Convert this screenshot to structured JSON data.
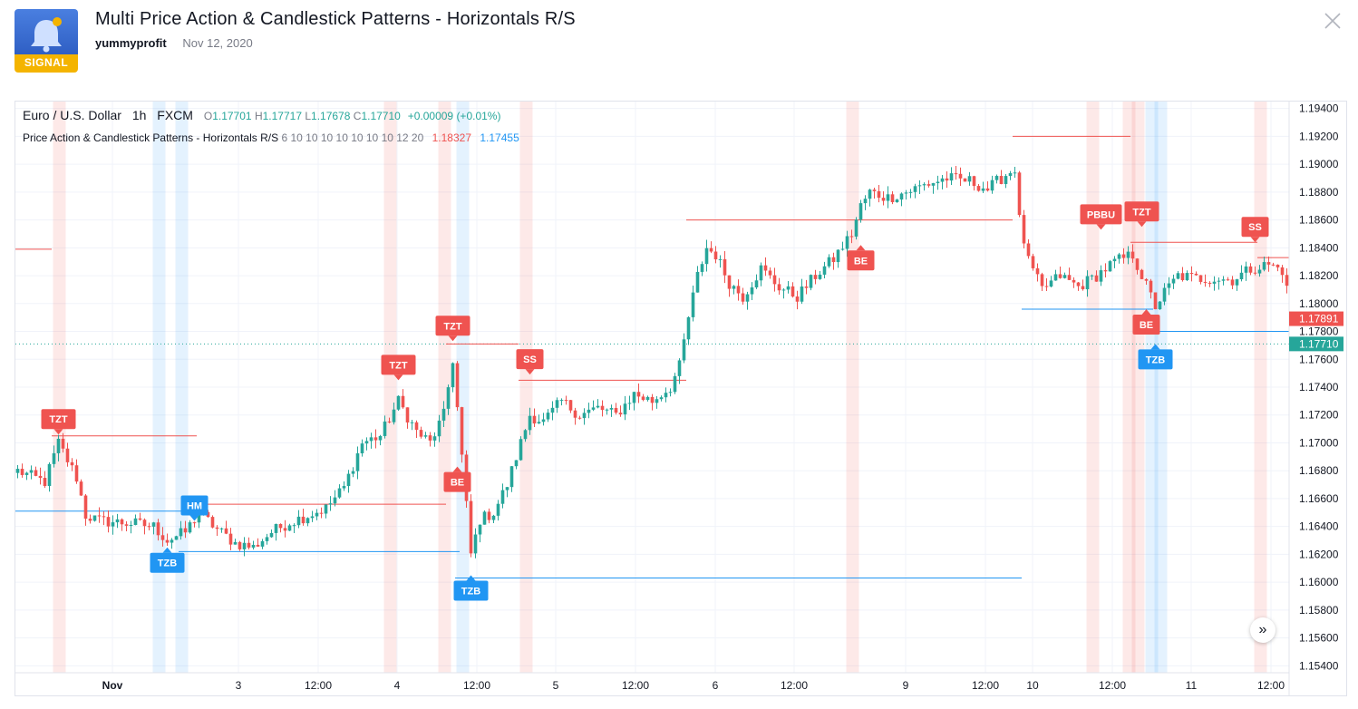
{
  "header": {
    "title": "Multi Price Action & Candlestick Patterns - Horizontals R/S",
    "author": "yummyprofit",
    "date": "Nov 12, 2020",
    "logo_label": "SIGNAL",
    "logo_icon": "bell-icon",
    "close_icon": "close-icon"
  },
  "legend": {
    "symbol": "Euro / U.S. Dollar",
    "interval": "1h",
    "exchange": "FXCM",
    "open_label": "O",
    "open": "1.17701",
    "high_label": "H",
    "high": "1.17717",
    "low_label": "L",
    "low": "1.17678",
    "close_label": "C",
    "close": "1.17710",
    "change": "+0.00009 (+0.01%)",
    "indicator_name": "Price Action & Candlestick Patterns - Horizontals R/S",
    "indicator_args": "6 10 10 10 10 10 10 10 12 20",
    "indicator_val1": "1.18327",
    "indicator_val2": "1.17455"
  },
  "colors": {
    "up": "#26a69a",
    "down": "#ef5350",
    "support": "#2196f3",
    "resistance": "#ef5350"
  },
  "chart_data": {
    "type": "candlestick",
    "y_ticks": [
      "1.19400",
      "1.19200",
      "1.19000",
      "1.18800",
      "1.18600",
      "1.18400",
      "1.18200",
      "1.18000",
      "1.17800",
      "1.17600",
      "1.17400",
      "1.17200",
      "1.17000",
      "1.16800",
      "1.16600",
      "1.16400",
      "1.16200",
      "1.16000",
      "1.15800",
      "1.15600",
      "1.15400"
    ],
    "x_ticks": [
      "Nov",
      "3",
      "12:00",
      "4",
      "12:00",
      "5",
      "12:00",
      "6",
      "12:00",
      "9",
      "12:00",
      "10",
      "12:00",
      "11",
      "12:00"
    ],
    "ylim": [
      1.1535,
      1.1945
    ],
    "price_labels": [
      {
        "value": 1.17891,
        "text": "1.17891",
        "kind": "resistance"
      },
      {
        "value": 1.1771,
        "text": "1.17710",
        "kind": "last"
      }
    ],
    "pattern_labels": [
      {
        "text": "TZT",
        "kind": "bear",
        "bar": 9,
        "price": 1.1706
      },
      {
        "text": "TZT",
        "kind": "bear",
        "bar": 84,
        "price": 1.1745
      },
      {
        "text": "TZT",
        "kind": "bear",
        "bar": 96,
        "price": 1.1773
      },
      {
        "text": "SS",
        "kind": "bear",
        "bar": 113,
        "price": 1.1749
      },
      {
        "text": "BE",
        "kind": "bear",
        "bar": 97,
        "price": 1.1683,
        "below": true
      },
      {
        "text": "BE",
        "kind": "bear",
        "bar": 186,
        "price": 1.1842,
        "below": true
      },
      {
        "text": "PBBU",
        "kind": "bear",
        "bar": 239,
        "price": 1.1853
      },
      {
        "text": "TZT",
        "kind": "bear",
        "bar": 248,
        "price": 1.1855
      },
      {
        "text": "SS",
        "kind": "bear",
        "bar": 273,
        "price": 1.1844
      },
      {
        "text": "BE",
        "kind": "bear",
        "bar": 249,
        "price": 1.1796,
        "below": true
      },
      {
        "text": "HM",
        "kind": "bull",
        "bar": 39,
        "price": 1.1644,
        "above": true
      },
      {
        "text": "TZB",
        "kind": "bull",
        "bar": 33,
        "price": 1.1625
      },
      {
        "text": "TZB",
        "kind": "bull",
        "bar": 100,
        "price": 1.1605
      },
      {
        "text": "TZB",
        "kind": "bull",
        "bar": 251,
        "price": 1.1771
      }
    ],
    "horizontals": [
      {
        "kind": "resistance",
        "from": 0,
        "to": 7,
        "price": 1.1839
      },
      {
        "kind": "resistance",
        "from": 8,
        "to": 39,
        "price": 1.1705
      },
      {
        "kind": "support",
        "from": 0,
        "to": 38,
        "price": 1.1651
      },
      {
        "kind": "resistance",
        "from": 40,
        "to": 94,
        "price": 1.1656
      },
      {
        "kind": "support",
        "from": 36,
        "to": 97,
        "price": 1.1622
      },
      {
        "kind": "resistance",
        "from": 95,
        "to": 110,
        "price": 1.1771
      },
      {
        "kind": "support",
        "from": 97,
        "to": 221,
        "price": 1.1603
      },
      {
        "kind": "resistance",
        "from": 111,
        "to": 147,
        "price": 1.1745
      },
      {
        "kind": "resistance",
        "from": 148,
        "to": 219,
        "price": 1.186
      },
      {
        "kind": "resistance",
        "from": 220,
        "to": 245,
        "price": 1.192
      },
      {
        "kind": "support",
        "from": 222,
        "to": 250,
        "price": 1.1796
      },
      {
        "kind": "resistance",
        "from": 246,
        "to": 273,
        "price": 1.1844
      },
      {
        "kind": "support",
        "from": 250,
        "to": 280,
        "price": 1.178
      },
      {
        "kind": "resistance",
        "from": 274,
        "to": 280,
        "price": 1.1833
      }
    ],
    "highlight_columns": [
      {
        "kind": "bear",
        "bar": 9
      },
      {
        "kind": "bull",
        "bar": 31
      },
      {
        "kind": "bull",
        "bar": 36
      },
      {
        "kind": "bear",
        "bar": 82
      },
      {
        "kind": "bear",
        "bar": 94
      },
      {
        "kind": "bull",
        "bar": 98
      },
      {
        "kind": "bear",
        "bar": 112
      },
      {
        "kind": "bear",
        "bar": 184
      },
      {
        "kind": "bear",
        "bar": 237
      },
      {
        "kind": "bear",
        "bar": 245
      },
      {
        "kind": "bear",
        "bar": 247
      },
      {
        "kind": "bull",
        "bar": 250
      },
      {
        "kind": "bull",
        "bar": 252
      },
      {
        "kind": "bear",
        "bar": 274
      }
    ],
    "anchors": [
      [
        0,
        1.168
      ],
      [
        6,
        1.1672
      ],
      [
        9,
        1.17
      ],
      [
        13,
        1.1675
      ],
      [
        15,
        1.1648
      ],
      [
        18,
        1.1644
      ],
      [
        26,
        1.1642
      ],
      [
        30,
        1.164
      ],
      [
        33,
        1.163
      ],
      [
        37,
        1.1636
      ],
      [
        40,
        1.165
      ],
      [
        44,
        1.1638
      ],
      [
        48,
        1.1628
      ],
      [
        52,
        1.1625
      ],
      [
        56,
        1.1636
      ],
      [
        60,
        1.1643
      ],
      [
        64,
        1.1648
      ],
      [
        68,
        1.1653
      ],
      [
        72,
        1.1668
      ],
      [
        76,
        1.17
      ],
      [
        80,
        1.1705
      ],
      [
        84,
        1.173
      ],
      [
        88,
        1.1708
      ],
      [
        91,
        1.17
      ],
      [
        94,
        1.172
      ],
      [
        96,
        1.176
      ],
      [
        98,
        1.169
      ],
      [
        100,
        1.162
      ],
      [
        102,
        1.1645
      ],
      [
        105,
        1.165
      ],
      [
        108,
        1.167
      ],
      [
        110,
        1.169
      ],
      [
        113,
        1.172
      ],
      [
        116,
        1.1715
      ],
      [
        120,
        1.173
      ],
      [
        124,
        1.172
      ],
      [
        128,
        1.1725
      ],
      [
        132,
        1.172
      ],
      [
        136,
        1.1735
      ],
      [
        140,
        1.173
      ],
      [
        144,
        1.174
      ],
      [
        146,
        1.1755
      ],
      [
        148,
        1.179
      ],
      [
        150,
        1.182
      ],
      [
        152,
        1.184
      ],
      [
        154,
        1.1835
      ],
      [
        157,
        1.1815
      ],
      [
        160,
        1.1805
      ],
      [
        164,
        1.1825
      ],
      [
        168,
        1.1812
      ],
      [
        172,
        1.1805
      ],
      [
        176,
        1.182
      ],
      [
        180,
        1.1832
      ],
      [
        184,
        1.185
      ],
      [
        186,
        1.187
      ],
      [
        188,
        1.188
      ],
      [
        192,
        1.1876
      ],
      [
        196,
        1.188
      ],
      [
        200,
        1.1885
      ],
      [
        205,
        1.189
      ],
      [
        210,
        1.1888
      ],
      [
        214,
        1.1882
      ],
      [
        217,
        1.189
      ],
      [
        220,
        1.1897
      ],
      [
        221,
        1.186
      ],
      [
        223,
        1.183
      ],
      [
        226,
        1.181
      ],
      [
        230,
        1.182
      ],
      [
        234,
        1.1812
      ],
      [
        238,
        1.182
      ],
      [
        242,
        1.183
      ],
      [
        246,
        1.1835
      ],
      [
        248,
        1.182
      ],
      [
        251,
        1.1798
      ],
      [
        253,
        1.1808
      ],
      [
        256,
        1.182
      ],
      [
        260,
        1.1818
      ],
      [
        264,
        1.1818
      ],
      [
        268,
        1.1817
      ],
      [
        272,
        1.1825
      ],
      [
        276,
        1.1828
      ],
      [
        279,
        1.1824
      ],
      [
        280,
        1.181
      ]
    ]
  },
  "nav_button": {
    "icon": "double-chevron-right-icon",
    "glyph": "»"
  }
}
